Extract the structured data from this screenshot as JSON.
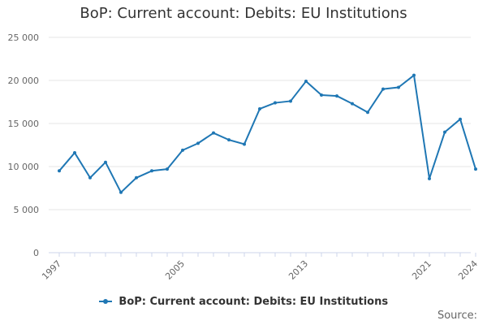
{
  "chart_data": {
    "type": "line",
    "title": "BoP: Current account: Debits: EU Institutions",
    "xlabel": "",
    "ylabel": "",
    "x": [
      1997,
      1998,
      1999,
      2000,
      2001,
      2002,
      2003,
      2004,
      2005,
      2006,
      2007,
      2008,
      2009,
      2010,
      2011,
      2012,
      2013,
      2014,
      2015,
      2016,
      2017,
      2018,
      2019,
      2020,
      2021,
      2022,
      2023,
      2024
    ],
    "series": [
      {
        "name": "BoP: Current account: Debits: EU Institutions",
        "values": [
          9500,
          11600,
          8700,
          10500,
          7000,
          8700,
          9500,
          9700,
          11900,
          12700,
          13900,
          13100,
          12600,
          16700,
          17400,
          17600,
          19900,
          18300,
          18200,
          17300,
          16300,
          19000,
          19200,
          20600,
          8600,
          14000,
          15500,
          9700
        ],
        "color": "#1f77b4"
      }
    ],
    "xticks": [
      1997,
      2005,
      2013,
      2021,
      2024
    ],
    "xtick_labels": [
      "1997",
      "2005",
      "2013",
      "2021",
      "2024"
    ],
    "yticks": [
      0,
      5000,
      10000,
      15000,
      20000,
      25000
    ],
    "ytick_labels": [
      "0",
      "5 000",
      "10 000",
      "15 000",
      "20 000",
      "25 000"
    ],
    "xlim": [
      1997,
      2024
    ],
    "ylim": [
      0,
      25000
    ],
    "grid": true,
    "legend": "bottom-center"
  },
  "source_label": "Source:"
}
